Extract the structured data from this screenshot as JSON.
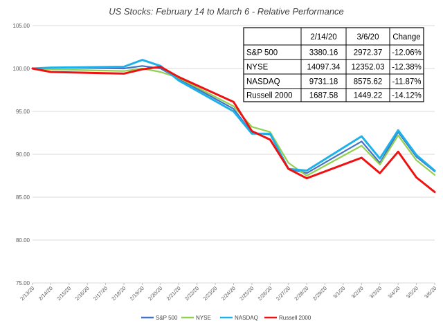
{
  "chart_data": {
    "type": "line",
    "title": "US Stocks: February 14 to  March 6 - Relative Performance",
    "xlabel": "",
    "ylabel": "",
    "ylim": [
      75,
      105
    ],
    "yticks": [
      "75.00",
      "80.00",
      "85.00",
      "90.00",
      "95.00",
      "100.00",
      "105.00"
    ],
    "grid": "horizontal",
    "legend_position": "bottom",
    "categories": [
      "2/13/20",
      "2/14/20",
      "2/15/20",
      "2/16/20",
      "2/17/20",
      "2/18/20",
      "2/19/20",
      "2/20/20",
      "2/21/20",
      "2/22/20",
      "2/23/20",
      "2/24/20",
      "2/25/20",
      "2/26/20",
      "2/27/20",
      "2/28/20",
      "2/29/20",
      "3/1/20",
      "3/2/20",
      "3/3/20",
      "3/4/20",
      "3/5/20",
      "3/6/20"
    ],
    "series": [
      {
        "name": "S&P 500",
        "color": "#4472C4",
        "x": [
          0,
          1,
          5,
          6,
          7,
          8,
          11,
          12,
          13,
          14,
          15,
          18,
          19,
          20,
          21,
          22
        ],
        "values": [
          100,
          100.1,
          100.0,
          100.3,
          100.0,
          98.8,
          95.3,
          92.5,
          92.3,
          88.3,
          87.8,
          91.5,
          89.0,
          92.6,
          89.7,
          88.0
        ]
      },
      {
        "name": "NYSE",
        "color": "#92D050",
        "x": [
          0,
          1,
          5,
          6,
          7,
          8,
          11,
          12,
          13,
          14,
          15,
          18,
          19,
          20,
          21,
          22
        ],
        "values": [
          100,
          99.9,
          99.7,
          100.0,
          99.6,
          98.9,
          95.6,
          93.2,
          92.6,
          89.0,
          87.5,
          91.0,
          88.8,
          92.2,
          89.3,
          87.6
        ]
      },
      {
        "name": "NASDAQ",
        "color": "#1EB0E8",
        "x": [
          0,
          1,
          5,
          6,
          7,
          8,
          11,
          12,
          13,
          14,
          15,
          18,
          19,
          20,
          21,
          22
        ],
        "values": [
          100,
          100.1,
          100.2,
          101.0,
          100.3,
          98.6,
          95.0,
          92.4,
          92.4,
          88.3,
          88.1,
          92.1,
          89.5,
          92.8,
          89.9,
          88.1
        ]
      },
      {
        "name": "Russell 2000",
        "color": "#EE1111",
        "x": [
          0,
          1,
          5,
          6,
          7,
          8,
          11,
          12,
          13,
          14,
          15,
          18,
          19,
          20,
          21,
          22
        ],
        "values": [
          100,
          99.6,
          99.4,
          99.9,
          100.2,
          99.0,
          96.1,
          92.7,
          91.7,
          88.3,
          87.2,
          89.6,
          87.8,
          90.3,
          87.3,
          85.6
        ]
      }
    ],
    "table": {
      "header": [
        "",
        "2/14/20",
        "3/6/20",
        "Change"
      ],
      "rows": [
        [
          "S&P 500",
          "3380.16",
          "2972.37",
          "-12.06%"
        ],
        [
          "NYSE",
          "14097.34",
          "12352.03",
          "-12.38%"
        ],
        [
          "NASDAQ",
          "9731.18",
          "8575.62",
          "-11.87%"
        ],
        [
          "Russell 2000",
          "1687.58",
          "1449.22",
          "-14.12%"
        ]
      ]
    }
  }
}
